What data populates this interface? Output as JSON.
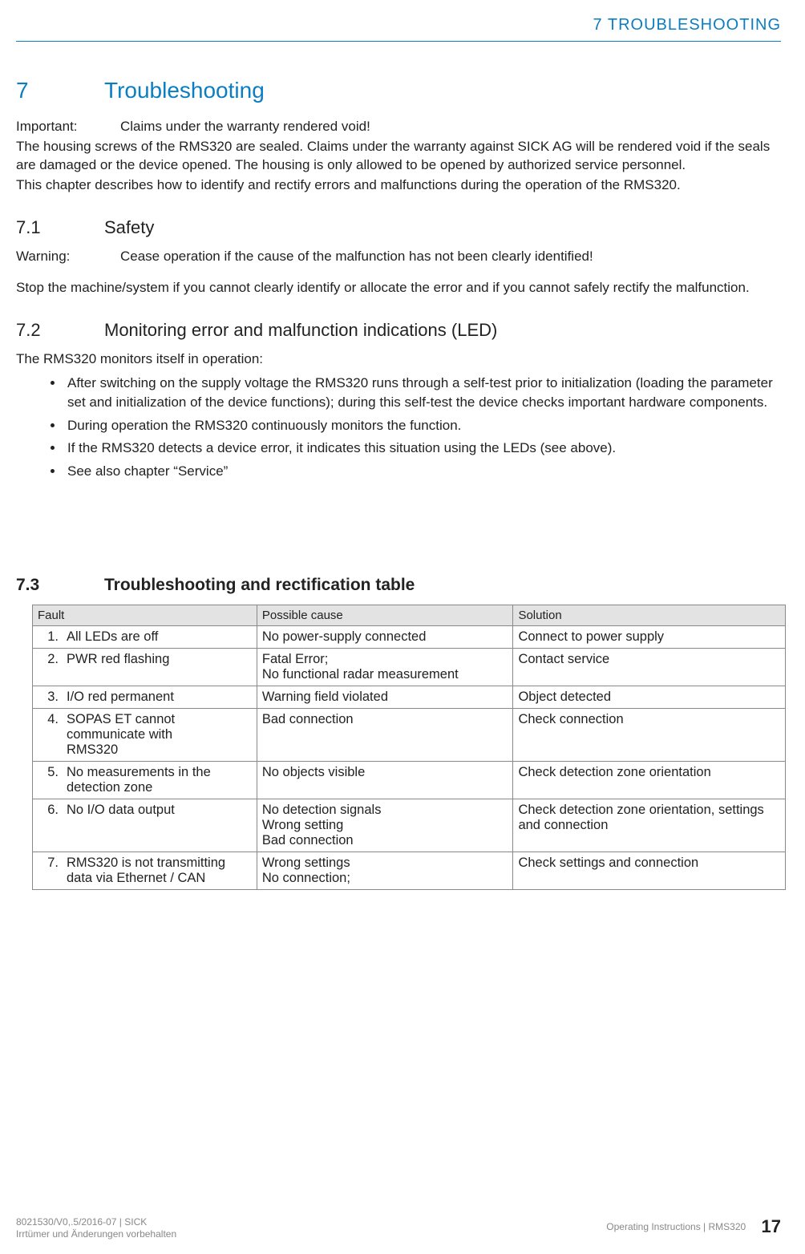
{
  "header": {
    "running_title": "7 TROUBLESHOOTING"
  },
  "chapter": {
    "number": "7",
    "title": "Troubleshooting"
  },
  "important": {
    "label": "Important:",
    "headline": "Claims under the warranty rendered void!",
    "body1": "The housing screws of the RMS320 are sealed. Claims under the warranty against SICK AG will be rendered void if the seals are damaged or the device opened. The housing is only allowed to be opened by authorized service personnel.",
    "body2": "This chapter describes how to identify and rectify errors and malfunctions during the operation of the RMS320."
  },
  "s71": {
    "number": "7.1",
    "title": "Safety",
    "warning_label": "Warning:",
    "warning_text": "Cease operation if the cause of the malfunction has not been clearly identified!",
    "body": "Stop the machine/system if you cannot clearly identify or allocate the error and if you cannot safely rectify the malfunction."
  },
  "s72": {
    "number": "7.2",
    "title": "Monitoring error and malfunction indications (LED)",
    "intro": "The RMS320 monitors itself in operation:",
    "bullets": [
      "After switching on the supply voltage the RMS320 runs through a self-test prior to initialization (loading the parameter set and initialization of the device functions); during this self-test the device checks important hardware components.",
      "During operation the RMS320 continuously monitors the function.",
      "If the RMS320 detects a device error, it indicates this situation using the LEDs (see above).",
      "See also chapter “Service”"
    ]
  },
  "s73": {
    "number": "7.3",
    "title": "Troubleshooting and rectification table",
    "columns": [
      "Fault",
      "Possible cause",
      "Solution"
    ],
    "rows": [
      {
        "n": "1.",
        "fault": "All LEDs are off",
        "cause": "No power-supply connected",
        "solution": "Connect to power supply"
      },
      {
        "n": "2.",
        "fault": "PWR red flashing",
        "cause": "Fatal Error;\nNo functional radar measurement",
        "solution": "Contact service"
      },
      {
        "n": "3.",
        "fault": "I/O red permanent",
        "cause": "Warning field violated",
        "solution": "Object detected"
      },
      {
        "n": "4.",
        "fault": "SOPAS ET cannot communicate with RMS320",
        "cause": "Bad connection",
        "solution": "Check connection"
      },
      {
        "n": "5.",
        "fault": "No measurements in the detection zone",
        "cause": "No objects visible",
        "solution": "Check detection zone orientation"
      },
      {
        "n": "6.",
        "fault": "No I/O data output",
        "cause": "No detection signals\nWrong setting\nBad connection",
        "solution": "Check detection zone orientation, settings and connection"
      },
      {
        "n": "7.",
        "fault": "RMS320 is not transmitting data via Ethernet / CAN",
        "cause": "Wrong settings\nNo connection;",
        "solution": "Check settings and connection"
      }
    ]
  },
  "footer": {
    "left1": "8021530/V0,.5/2016-07 | SICK",
    "left2": "Irrtümer und Änderungen vorbehalten",
    "right": "Operating Instructions | RMS320",
    "page": "17"
  }
}
